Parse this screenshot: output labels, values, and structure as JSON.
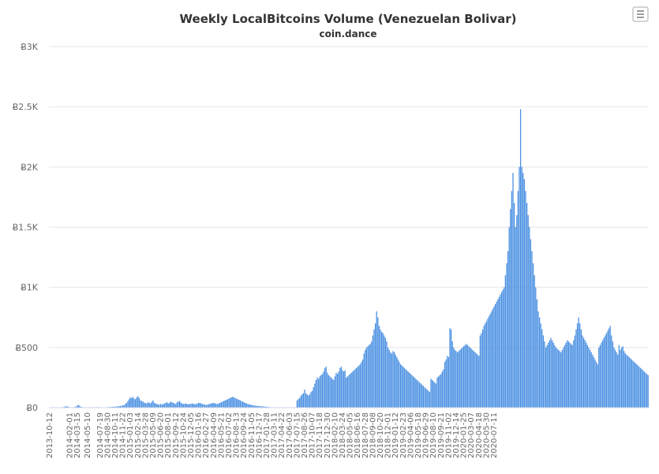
{
  "colors": {
    "bar": "#4a90e2",
    "grid": "#e6e6e6",
    "text": "#333333",
    "axis_text": "#666666"
  },
  "menu_icon": "hamburger-menu-icon",
  "chart_data": {
    "type": "bar",
    "title": "Weekly LocalBitcoins Volume (Venezuelan Bolivar)",
    "subtitle": "coin.dance",
    "xlabel": "",
    "ylabel": "",
    "ylim": [
      0,
      3000
    ],
    "yticks": [
      {
        "value": 0,
        "label": "Ƀ0"
      },
      {
        "value": 500,
        "label": "Ƀ500"
      },
      {
        "value": 1000,
        "label": "Ƀ1K"
      },
      {
        "value": 1500,
        "label": "Ƀ1.5K"
      },
      {
        "value": 2000,
        "label": "Ƀ2K"
      },
      {
        "value": 2500,
        "label": "Ƀ2.5K"
      },
      {
        "value": 3000,
        "label": "Ƀ3K"
      }
    ],
    "grid": true,
    "legend": "none",
    "start_date": "2013-10-12",
    "interval_days": 7,
    "xtick_labels": [
      "2013-10-12",
      "2014-02-01",
      "2014-03-15",
      "2014-05-10",
      "2014-07-19",
      "2014-08-30",
      "2014-10-11",
      "2014-11-22",
      "2015-01-03",
      "2015-02-14",
      "2015-03-28",
      "2015-05-09",
      "2015-06-20",
      "2015-08-01",
      "2015-09-12",
      "2015-10-24",
      "2015-12-05",
      "2016-01-16",
      "2016-02-27",
      "2016-04-09",
      "2016-05-21",
      "2016-07-02",
      "2016-08-13",
      "2016-09-24",
      "2016-11-05",
      "2016-12-17",
      "2017-01-28",
      "2017-03-11",
      "2017-04-22",
      "2017-06-03",
      "2017-07-15",
      "2017-08-26",
      "2017-10-07",
      "2017-11-18",
      "2017-12-30",
      "2018-02-10",
      "2018-03-24",
      "2018-05-05",
      "2018-06-16",
      "2018-07-28",
      "2018-09-08",
      "2018-10-20",
      "2018-12-01",
      "2019-01-12",
      "2019-02-23",
      "2019-04-06",
      "2019-05-18",
      "2019-06-29",
      "2019-08-10",
      "2019-09-21",
      "2019-11-02",
      "2019-12-14",
      "2020-01-25",
      "2020-03-07",
      "2020-04-18",
      "2020-05-30",
      "2020-07-11"
    ],
    "values": [
      0,
      0,
      0,
      0,
      0,
      0,
      0,
      0,
      0,
      0,
      2,
      5,
      8,
      12,
      10,
      6,
      4,
      3,
      2,
      2,
      5,
      10,
      18,
      22,
      14,
      6,
      4,
      3,
      2,
      2,
      2,
      2,
      2,
      2,
      3,
      3,
      3,
      4,
      5,
      3,
      3,
      3,
      2,
      3,
      3,
      3,
      4,
      5,
      6,
      6,
      7,
      8,
      8,
      9,
      10,
      12,
      14,
      16,
      18,
      20,
      30,
      40,
      55,
      70,
      85,
      80,
      90,
      75,
      70,
      85,
      95,
      80,
      60,
      55,
      50,
      42,
      38,
      35,
      45,
      40,
      35,
      50,
      60,
      40,
      35,
      30,
      28,
      25,
      30,
      25,
      30,
      35,
      40,
      45,
      35,
      40,
      50,
      45,
      40,
      35,
      30,
      45,
      50,
      55,
      40,
      35,
      30,
      32,
      35,
      30,
      28,
      30,
      32,
      35,
      32,
      28,
      30,
      35,
      38,
      40,
      35,
      30,
      28,
      25,
      22,
      25,
      28,
      32,
      35,
      38,
      40,
      35,
      32,
      30,
      35,
      40,
      45,
      50,
      55,
      60,
      65,
      70,
      75,
      80,
      85,
      90,
      85,
      80,
      75,
      70,
      65,
      60,
      55,
      50,
      45,
      40,
      35,
      30,
      28,
      25,
      22,
      20,
      18,
      16,
      15,
      14,
      13,
      12,
      11,
      10,
      9,
      8,
      7,
      6,
      5,
      4,
      3,
      2,
      1,
      0,
      0,
      0,
      0,
      0,
      0,
      0,
      0,
      0,
      0,
      0,
      0,
      0,
      0,
      0,
      0,
      0,
      60,
      70,
      80,
      100,
      110,
      120,
      150,
      120,
      110,
      100,
      110,
      130,
      140,
      170,
      200,
      230,
      250,
      240,
      260,
      270,
      280,
      300,
      330,
      340,
      290,
      270,
      260,
      250,
      240,
      230,
      260,
      290,
      280,
      300,
      330,
      340,
      310,
      300,
      310,
      250,
      260,
      270,
      280,
      290,
      300,
      310,
      320,
      330,
      340,
      350,
      360,
      380,
      400,
      450,
      480,
      500,
      510,
      520,
      530,
      550,
      600,
      650,
      700,
      800,
      750,
      680,
      650,
      630,
      620,
      600,
      580,
      550,
      500,
      480,
      460,
      450,
      470,
      460,
      440,
      420,
      400,
      380,
      360,
      350,
      340,
      330,
      320,
      310,
      300,
      290,
      280,
      270,
      260,
      250,
      240,
      230,
      220,
      210,
      200,
      190,
      180,
      170,
      160,
      150,
      140,
      130,
      240,
      230,
      220,
      210,
      200,
      250,
      260,
      270,
      280,
      300,
      320,
      380,
      400,
      430,
      420,
      660,
      650,
      550,
      500,
      480,
      470,
      460,
      470,
      480,
      490,
      500,
      510,
      520,
      530,
      520,
      510,
      500,
      490,
      480,
      470,
      460,
      450,
      440,
      430,
      600,
      620,
      650,
      680,
      700,
      720,
      740,
      760,
      780,
      800,
      820,
      840,
      860,
      880,
      900,
      920,
      940,
      960,
      980,
      1000,
      1100,
      1200,
      1300,
      1500,
      1650,
      1800,
      1950,
      1700,
      1500,
      1600,
      1800,
      2000,
      2480,
      2000,
      1950,
      1900,
      1800,
      1700,
      1600,
      1500,
      1400,
      1300,
      1200,
      1100,
      1000,
      900,
      800,
      750,
      700,
      650,
      600,
      550,
      500,
      520,
      540,
      560,
      580,
      560,
      540,
      520,
      500,
      490,
      480,
      470,
      460,
      480,
      500,
      520,
      540,
      560,
      550,
      540,
      530,
      520,
      560,
      600,
      650,
      700,
      750,
      700,
      650,
      600,
      580,
      560,
      540,
      520,
      500,
      480,
      460,
      440,
      420,
      400,
      380,
      360,
      500,
      520,
      540,
      560,
      580,
      600,
      620,
      640,
      660,
      680,
      600,
      550,
      500,
      480,
      460,
      440,
      520,
      480,
      500,
      510,
      470,
      450,
      440,
      430,
      420,
      410,
      400,
      390,
      380,
      370,
      360,
      350,
      340,
      330,
      320,
      310,
      300,
      290,
      280,
      270
    ]
  }
}
